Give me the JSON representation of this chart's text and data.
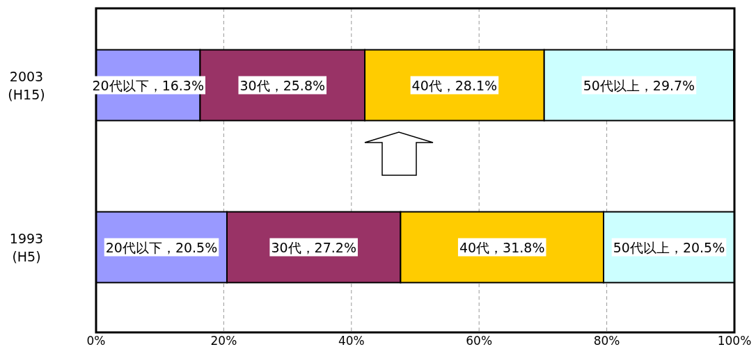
{
  "chart_data": {
    "type": "bar",
    "orientation": "horizontal",
    "stacked": true,
    "categories": [
      "2003\n(H15)",
      "1993\n(H5)"
    ],
    "series": [
      {
        "color": "#9999ff",
        "values": [
          16.3,
          20.5
        ],
        "value_labels": [
          "20代以下，16.3%",
          "20代以下，20.5%"
        ]
      },
      {
        "color": "#993366",
        "values": [
          25.8,
          27.2
        ],
        "value_labels": [
          "30代，25.8%",
          "30代，27.2%"
        ]
      },
      {
        "color": "#ffcc00",
        "values": [
          28.1,
          31.8
        ],
        "value_labels": [
          "40代，28.1%",
          "40代，31.8%"
        ]
      },
      {
        "color": "#ccffff",
        "values": [
          29.7,
          20.5
        ],
        "value_labels": [
          "50代以上，29.7%",
          "50代以上，20.5%"
        ]
      }
    ],
    "xlim": [
      0,
      100
    ],
    "xticks": [
      {
        "value": 0,
        "label": "0%"
      },
      {
        "value": 20,
        "label": "20%"
      },
      {
        "value": 40,
        "label": "40%"
      },
      {
        "value": 60,
        "label": "60%"
      },
      {
        "value": 80,
        "label": "80%"
      },
      {
        "value": 100,
        "label": "100%"
      }
    ],
    "grid": "x"
  }
}
